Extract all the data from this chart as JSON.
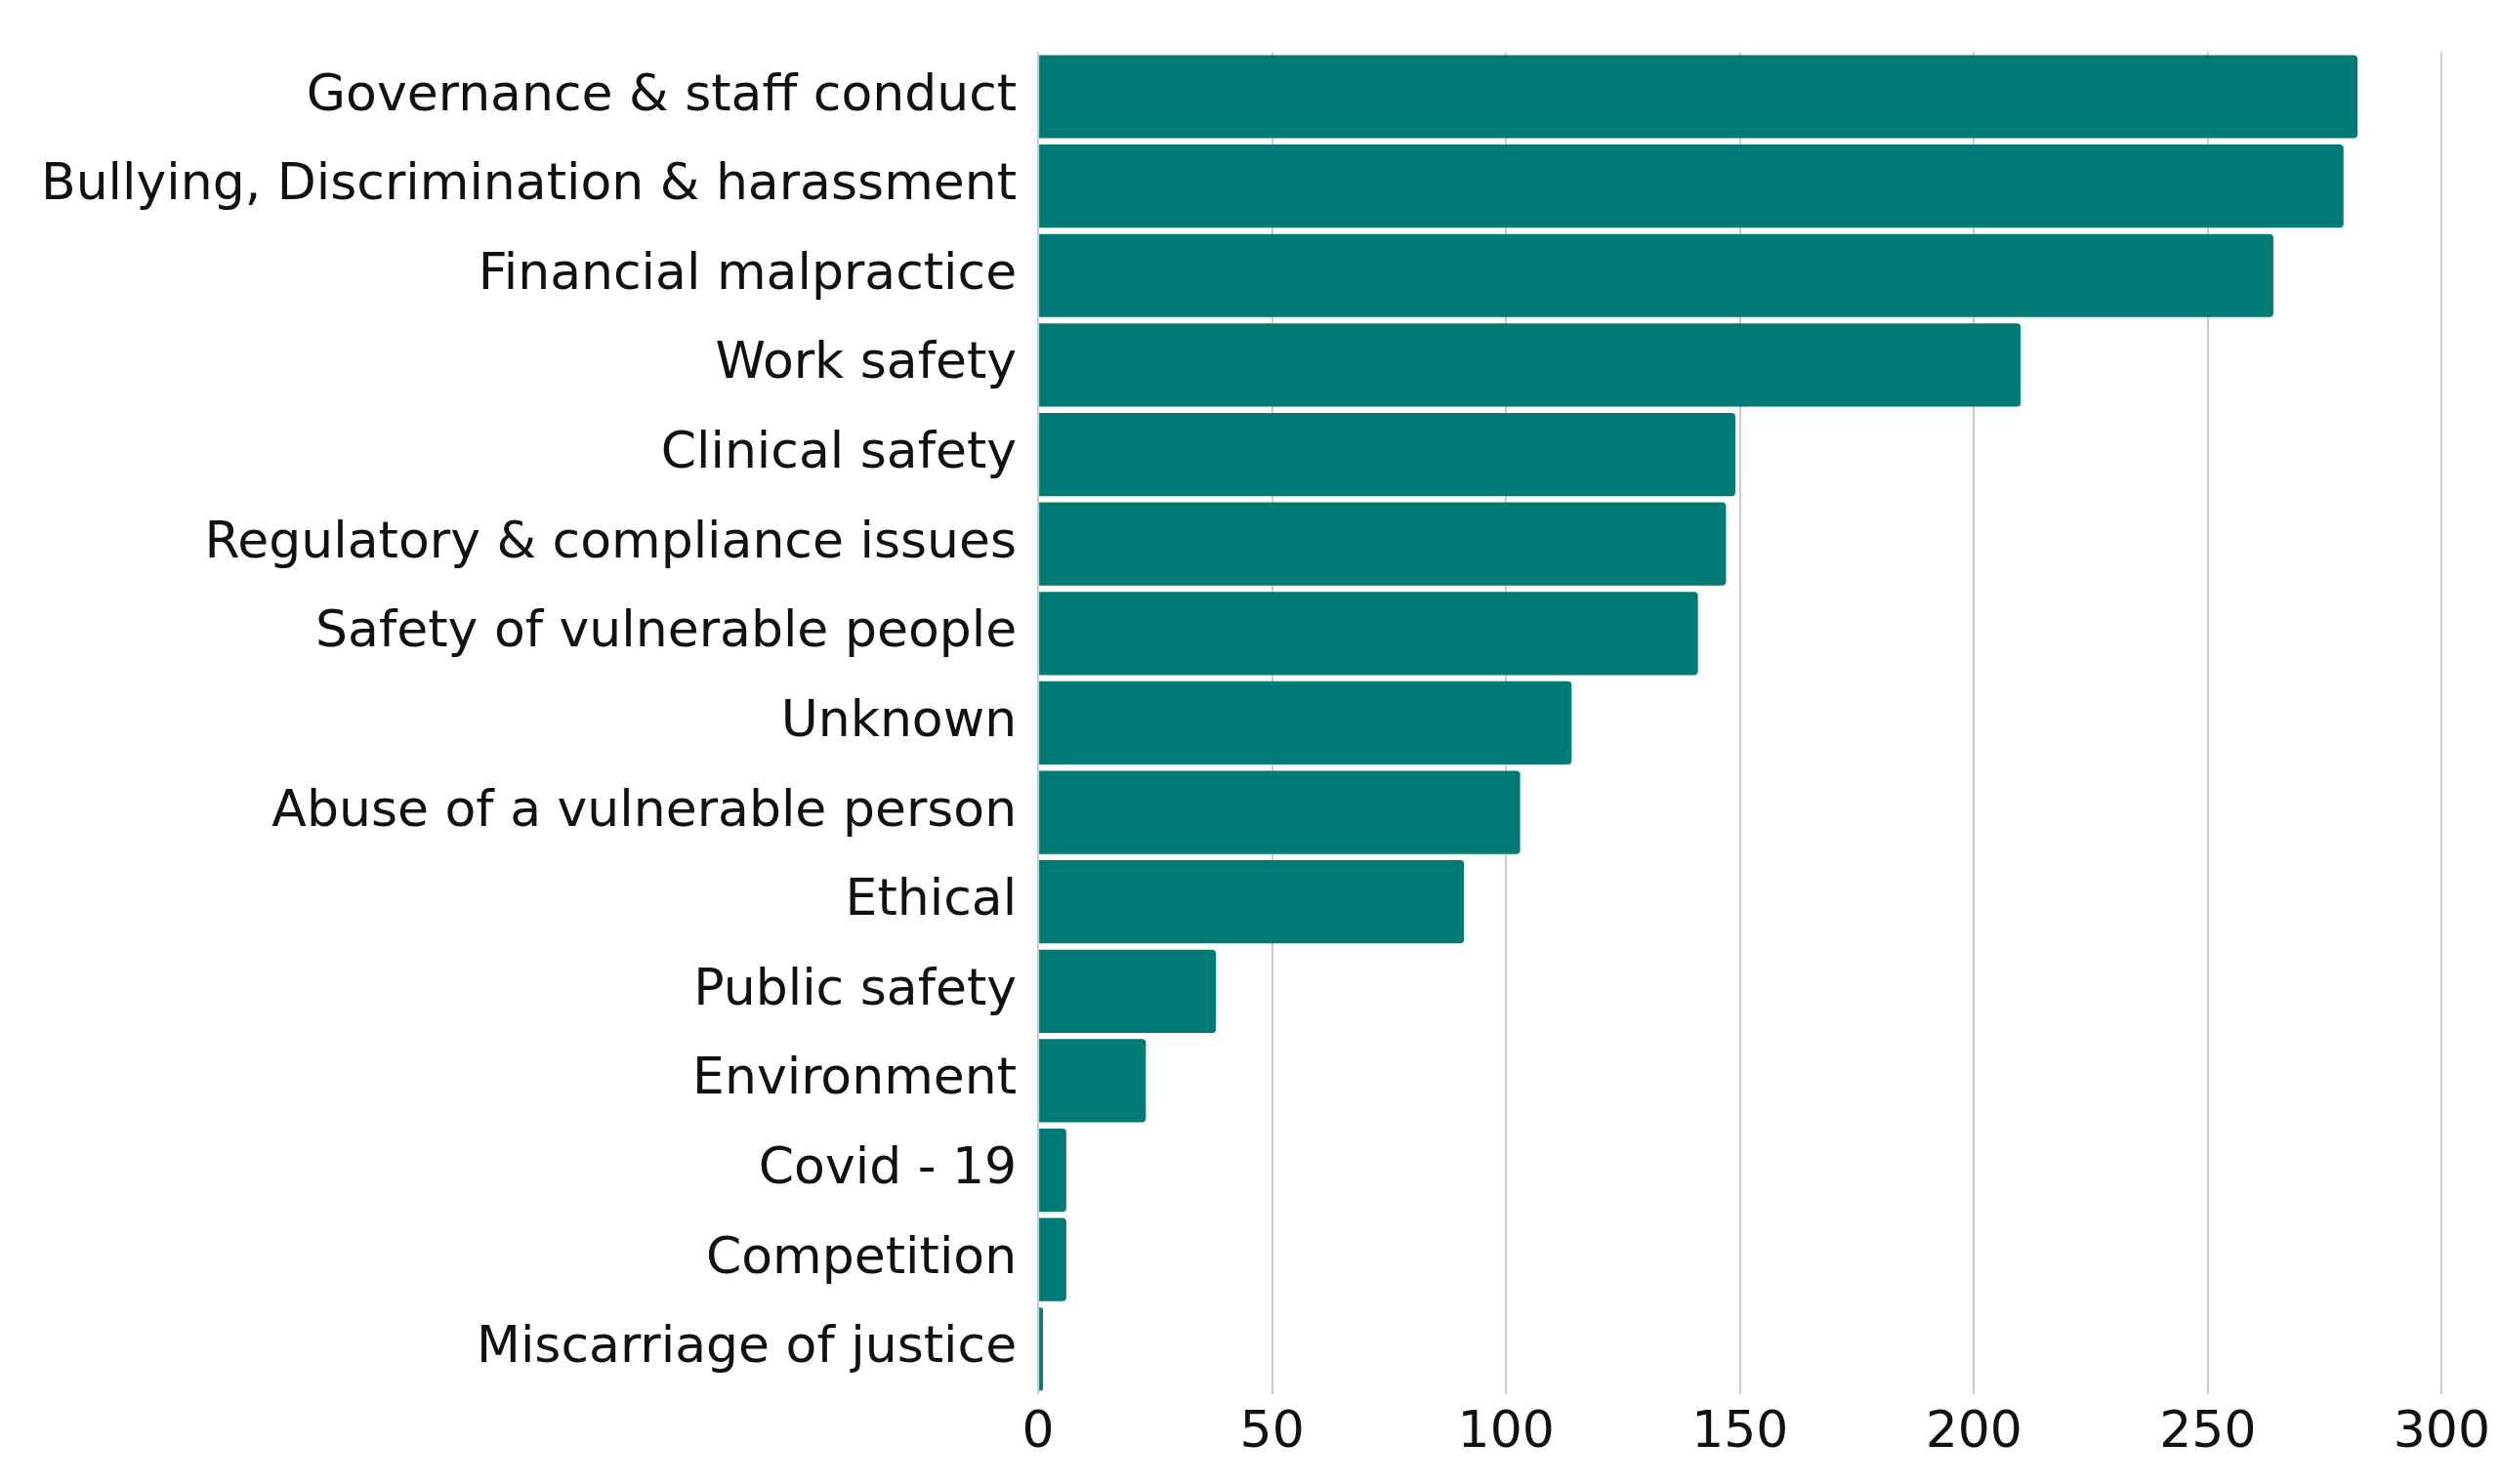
{
  "chart_data": {
    "type": "bar",
    "orientation": "horizontal",
    "categories": [
      "Governance & staff conduct",
      "Bullying, Discrimination & harassment",
      "Financial malpractice",
      "Work safety",
      "Clinical safety",
      "Regulatory & compliance issues",
      "Safety of vulnerable people",
      "Unknown",
      "Abuse of a vulnerable person",
      "Ethical",
      "Public safety",
      "Environment",
      "Covid - 19",
      "Competition",
      "Miscarriage of justice"
    ],
    "values": [
      282,
      279,
      264,
      210,
      149,
      147,
      141,
      114,
      103,
      91,
      38,
      23,
      6,
      6,
      1
    ],
    "color": "#007a74",
    "xlim": [
      0,
      300
    ],
    "xticks": [
      0,
      50,
      100,
      150,
      200,
      250,
      300
    ],
    "grid": "x",
    "legend": false
  }
}
